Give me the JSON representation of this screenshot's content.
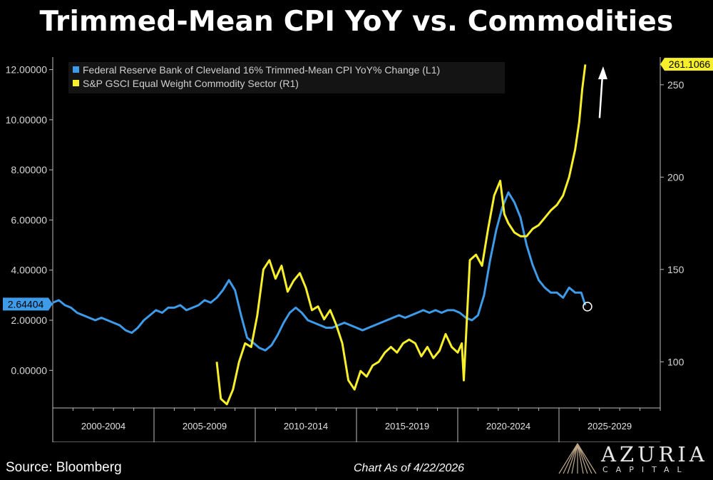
{
  "title": "Trimmed-Mean CPI YoY vs. Commodities",
  "footer": {
    "source": "Source: Bloomberg",
    "as_of": "Chart As of 4/22/2026",
    "brand_name": "AZURIA",
    "brand_sub": "CAPITAL"
  },
  "colors": {
    "cpi": "#3d9be9",
    "commodity": "#f7ef2a",
    "background": "#000000",
    "axis": "#bdbdbd"
  },
  "chart_data": {
    "type": "line",
    "x_categories": [
      "2000-2004",
      "2005-2009",
      "2010-2014",
      "2015-2019",
      "2020-2024",
      "2025-2029"
    ],
    "xlim": [
      2000.0,
      2030.0
    ],
    "ylim_left": [
      -1.5,
      12.5
    ],
    "ylim_right": [
      75,
      265
    ],
    "left_ticks": [
      "0.00000",
      "2.00000",
      "4.00000",
      "6.00000",
      "8.00000",
      "10.00000",
      "12.00000"
    ],
    "right_ticks": [
      "100",
      "150",
      "200",
      "250"
    ],
    "left_last_value": "2.64404",
    "right_last_value": "261.1066",
    "series": [
      {
        "name": "Federal Reserve Bank of Cleveland 16% Trimmed-Mean CPI YoY% Change  (L1)",
        "axis": "left",
        "x": [
          2000.0,
          2000.3,
          2000.6,
          2000.9,
          2001.2,
          2001.5,
          2001.8,
          2002.1,
          2002.4,
          2002.7,
          2003.0,
          2003.3,
          2003.6,
          2003.9,
          2004.2,
          2004.5,
          2004.8,
          2005.1,
          2005.4,
          2005.7,
          2006.0,
          2006.3,
          2006.6,
          2006.9,
          2007.2,
          2007.5,
          2007.8,
          2008.1,
          2008.4,
          2008.7,
          2009.0,
          2009.3,
          2009.6,
          2009.9,
          2010.2,
          2010.5,
          2010.8,
          2011.1,
          2011.4,
          2011.7,
          2012.0,
          2012.3,
          2012.6,
          2012.9,
          2013.2,
          2013.5,
          2013.8,
          2014.1,
          2014.4,
          2014.7,
          2015.0,
          2015.3,
          2015.6,
          2015.9,
          2016.2,
          2016.5,
          2016.8,
          2017.1,
          2017.4,
          2017.7,
          2018.0,
          2018.3,
          2018.6,
          2018.9,
          2019.2,
          2019.5,
          2019.8,
          2020.1,
          2020.4,
          2020.7,
          2021.0,
          2021.3,
          2021.6,
          2021.9,
          2022.2,
          2022.5,
          2022.8,
          2023.1,
          2023.4,
          2023.7,
          2024.0,
          2024.3,
          2024.6,
          2024.9,
          2025.2,
          2025.5,
          2025.8,
          2026.1,
          2026.3
        ],
        "y": [
          2.7,
          2.8,
          2.6,
          2.5,
          2.3,
          2.2,
          2.1,
          2.0,
          2.1,
          2.0,
          1.9,
          1.8,
          1.6,
          1.5,
          1.7,
          2.0,
          2.2,
          2.4,
          2.3,
          2.5,
          2.5,
          2.6,
          2.4,
          2.5,
          2.6,
          2.8,
          2.7,
          2.9,
          3.2,
          3.6,
          3.2,
          2.2,
          1.3,
          1.1,
          0.9,
          0.8,
          1.0,
          1.4,
          1.9,
          2.3,
          2.5,
          2.3,
          2.0,
          1.9,
          1.8,
          1.7,
          1.7,
          1.8,
          1.9,
          1.8,
          1.7,
          1.6,
          1.7,
          1.8,
          1.9,
          2.0,
          2.1,
          2.2,
          2.1,
          2.2,
          2.3,
          2.4,
          2.3,
          2.4,
          2.3,
          2.4,
          2.4,
          2.3,
          2.1,
          2.0,
          2.2,
          3.0,
          4.4,
          5.6,
          6.5,
          7.1,
          6.7,
          6.1,
          5.0,
          4.2,
          3.6,
          3.3,
          3.1,
          3.1,
          2.9,
          3.3,
          3.1,
          3.1,
          2.6
        ]
      },
      {
        "name": "S&P GSCI Equal Weight Commodity Sector  (R1)",
        "axis": "right",
        "x": [
          2008.1,
          2008.3,
          2008.6,
          2008.9,
          2009.2,
          2009.5,
          2009.8,
          2010.1,
          2010.4,
          2010.7,
          2011.0,
          2011.3,
          2011.6,
          2011.9,
          2012.2,
          2012.5,
          2012.8,
          2013.1,
          2013.4,
          2013.7,
          2014.0,
          2014.3,
          2014.6,
          2014.9,
          2015.2,
          2015.5,
          2015.8,
          2016.1,
          2016.4,
          2016.7,
          2017.0,
          2017.3,
          2017.6,
          2017.9,
          2018.2,
          2018.5,
          2018.8,
          2019.1,
          2019.4,
          2019.7,
          2020.0,
          2020.2,
          2020.3,
          2020.6,
          2020.9,
          2021.2,
          2021.5,
          2021.8,
          2022.1,
          2022.3,
          2022.5,
          2022.8,
          2023.1,
          2023.4,
          2023.7,
          2024.0,
          2024.3,
          2024.6,
          2024.9,
          2025.2,
          2025.5,
          2025.8,
          2026.0,
          2026.15,
          2026.3
        ],
        "y": [
          100,
          80,
          77,
          85,
          100,
          110,
          108,
          125,
          150,
          155,
          145,
          152,
          138,
          144,
          148,
          140,
          128,
          130,
          123,
          128,
          120,
          110,
          90,
          85,
          95,
          92,
          98,
          100,
          105,
          108,
          105,
          110,
          112,
          110,
          103,
          108,
          102,
          106,
          115,
          108,
          105,
          110,
          90,
          155,
          158,
          152,
          172,
          190,
          198,
          180,
          175,
          170,
          168,
          168,
          172,
          174,
          178,
          182,
          185,
          190,
          200,
          215,
          230,
          248,
          261
        ]
      }
    ]
  }
}
